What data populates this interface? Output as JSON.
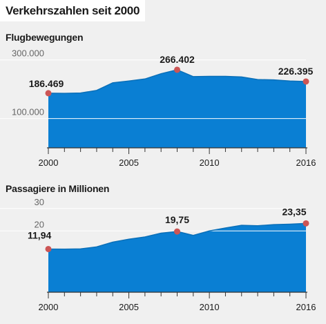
{
  "title": "Verkehrszahlen seit 2000",
  "colors": {
    "area": "#0a7fd3",
    "marker": "#cc5555",
    "grid": "#ffffff",
    "axis": "#333333",
    "background": "#f0f0f0"
  },
  "chart_data": [
    {
      "type": "area",
      "title": "Flugbewegungen",
      "x": [
        2000,
        2001,
        2002,
        2003,
        2004,
        2005,
        2006,
        2007,
        2008,
        2009,
        2010,
        2011,
        2012,
        2013,
        2014,
        2015,
        2016
      ],
      "values": [
        186469,
        186000,
        187000,
        196000,
        222000,
        228000,
        235000,
        253000,
        266402,
        243000,
        244000,
        244000,
        242000,
        233000,
        232000,
        228000,
        226395
      ],
      "ylim": [
        0,
        330000
      ],
      "yticks": [
        100000,
        300000
      ],
      "ytick_labels": [
        "100.000",
        "300.000"
      ],
      "xticks": [
        2000,
        2005,
        2010,
        2016
      ],
      "xtick_labels": [
        "2000",
        "2005",
        "2010",
        "2016"
      ],
      "annotations": [
        {
          "x": 2000,
          "label": "186.469"
        },
        {
          "x": 2008,
          "label": "266.402"
        },
        {
          "x": 2016,
          "label": "226.395"
        }
      ],
      "grid": true
    },
    {
      "type": "area",
      "title": "Passagiere in Millionen",
      "x": [
        2000,
        2001,
        2002,
        2003,
        2004,
        2005,
        2006,
        2007,
        2008,
        2009,
        2010,
        2011,
        2012,
        2013,
        2014,
        2015,
        2016
      ],
      "values": [
        11.94,
        11.9,
        12.0,
        12.9,
        15.0,
        16.3,
        17.3,
        19.0,
        19.75,
        18.0,
        20.0,
        21.3,
        22.5,
        22.3,
        22.8,
        23.0,
        23.35
      ],
      "ylim": [
        -7.3,
        33
      ],
      "yticks": [
        20,
        30
      ],
      "ytick_labels": [
        "20",
        "30"
      ],
      "xticks": [
        2000,
        2005,
        2010,
        2016
      ],
      "xtick_labels": [
        "2000",
        "2005",
        "2010",
        "2016"
      ],
      "annotations": [
        {
          "x": 2000,
          "label": "11,94"
        },
        {
          "x": 2008,
          "label": "19,75"
        },
        {
          "x": 2016,
          "label": "23,35"
        }
      ],
      "grid": true
    }
  ]
}
